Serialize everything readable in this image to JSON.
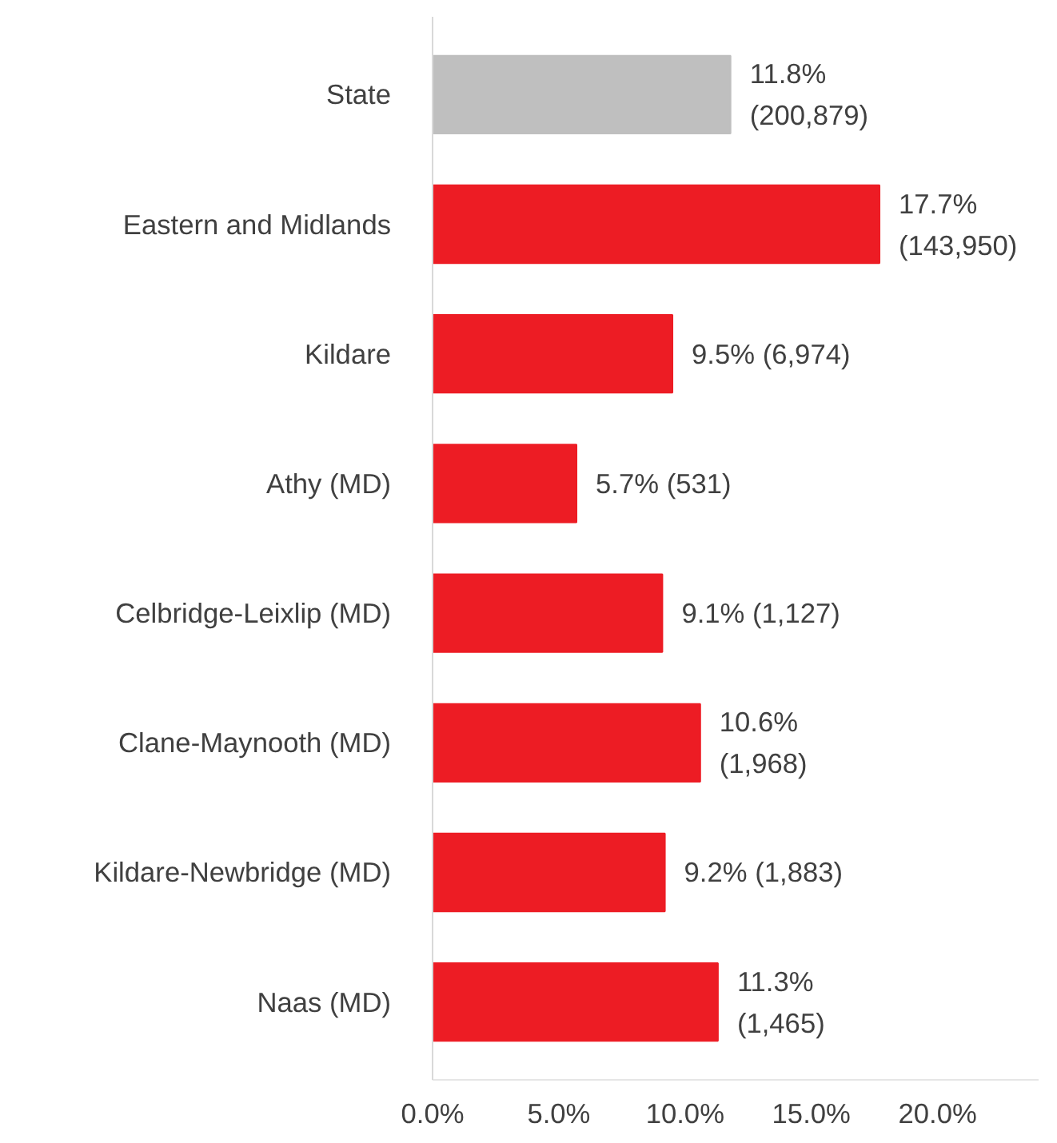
{
  "chart_data": {
    "type": "bar",
    "orientation": "horizontal",
    "categories": [
      "State",
      "Eastern and Midlands",
      "Kildare",
      "Athy (MD)",
      "Celbridge-Leixlip (MD)",
      "Clane-Maynooth (MD)",
      "Kildare-Newbridge (MD)",
      "Naas (MD)"
    ],
    "values": [
      11.8,
      17.7,
      9.5,
      5.7,
      9.1,
      10.6,
      9.2,
      11.3
    ],
    "colors": [
      "#bfbfbf",
      "#ed1c24",
      "#ed1c24",
      "#ed1c24",
      "#ed1c24",
      "#ed1c24",
      "#ed1c24",
      "#ed1c24"
    ],
    "value_labels": [
      "11.8%\n(200,879)",
      "17.7%\n(143,950)",
      "9.5% (6,974)",
      "5.7% (531)",
      "9.1% (1,127)",
      "10.6%\n(1,968)",
      "9.2% (1,883)",
      "11.3%\n(1,465)"
    ],
    "xlim": [
      0,
      24
    ],
    "xticks": [
      {
        "value": 0,
        "label": "0.0%"
      },
      {
        "value": 5,
        "label": "5.0%"
      },
      {
        "value": 10,
        "label": "10.0%"
      },
      {
        "value": 15,
        "label": "15.0%"
      },
      {
        "value": 20,
        "label": "20.0%"
      }
    ],
    "grid": false
  }
}
